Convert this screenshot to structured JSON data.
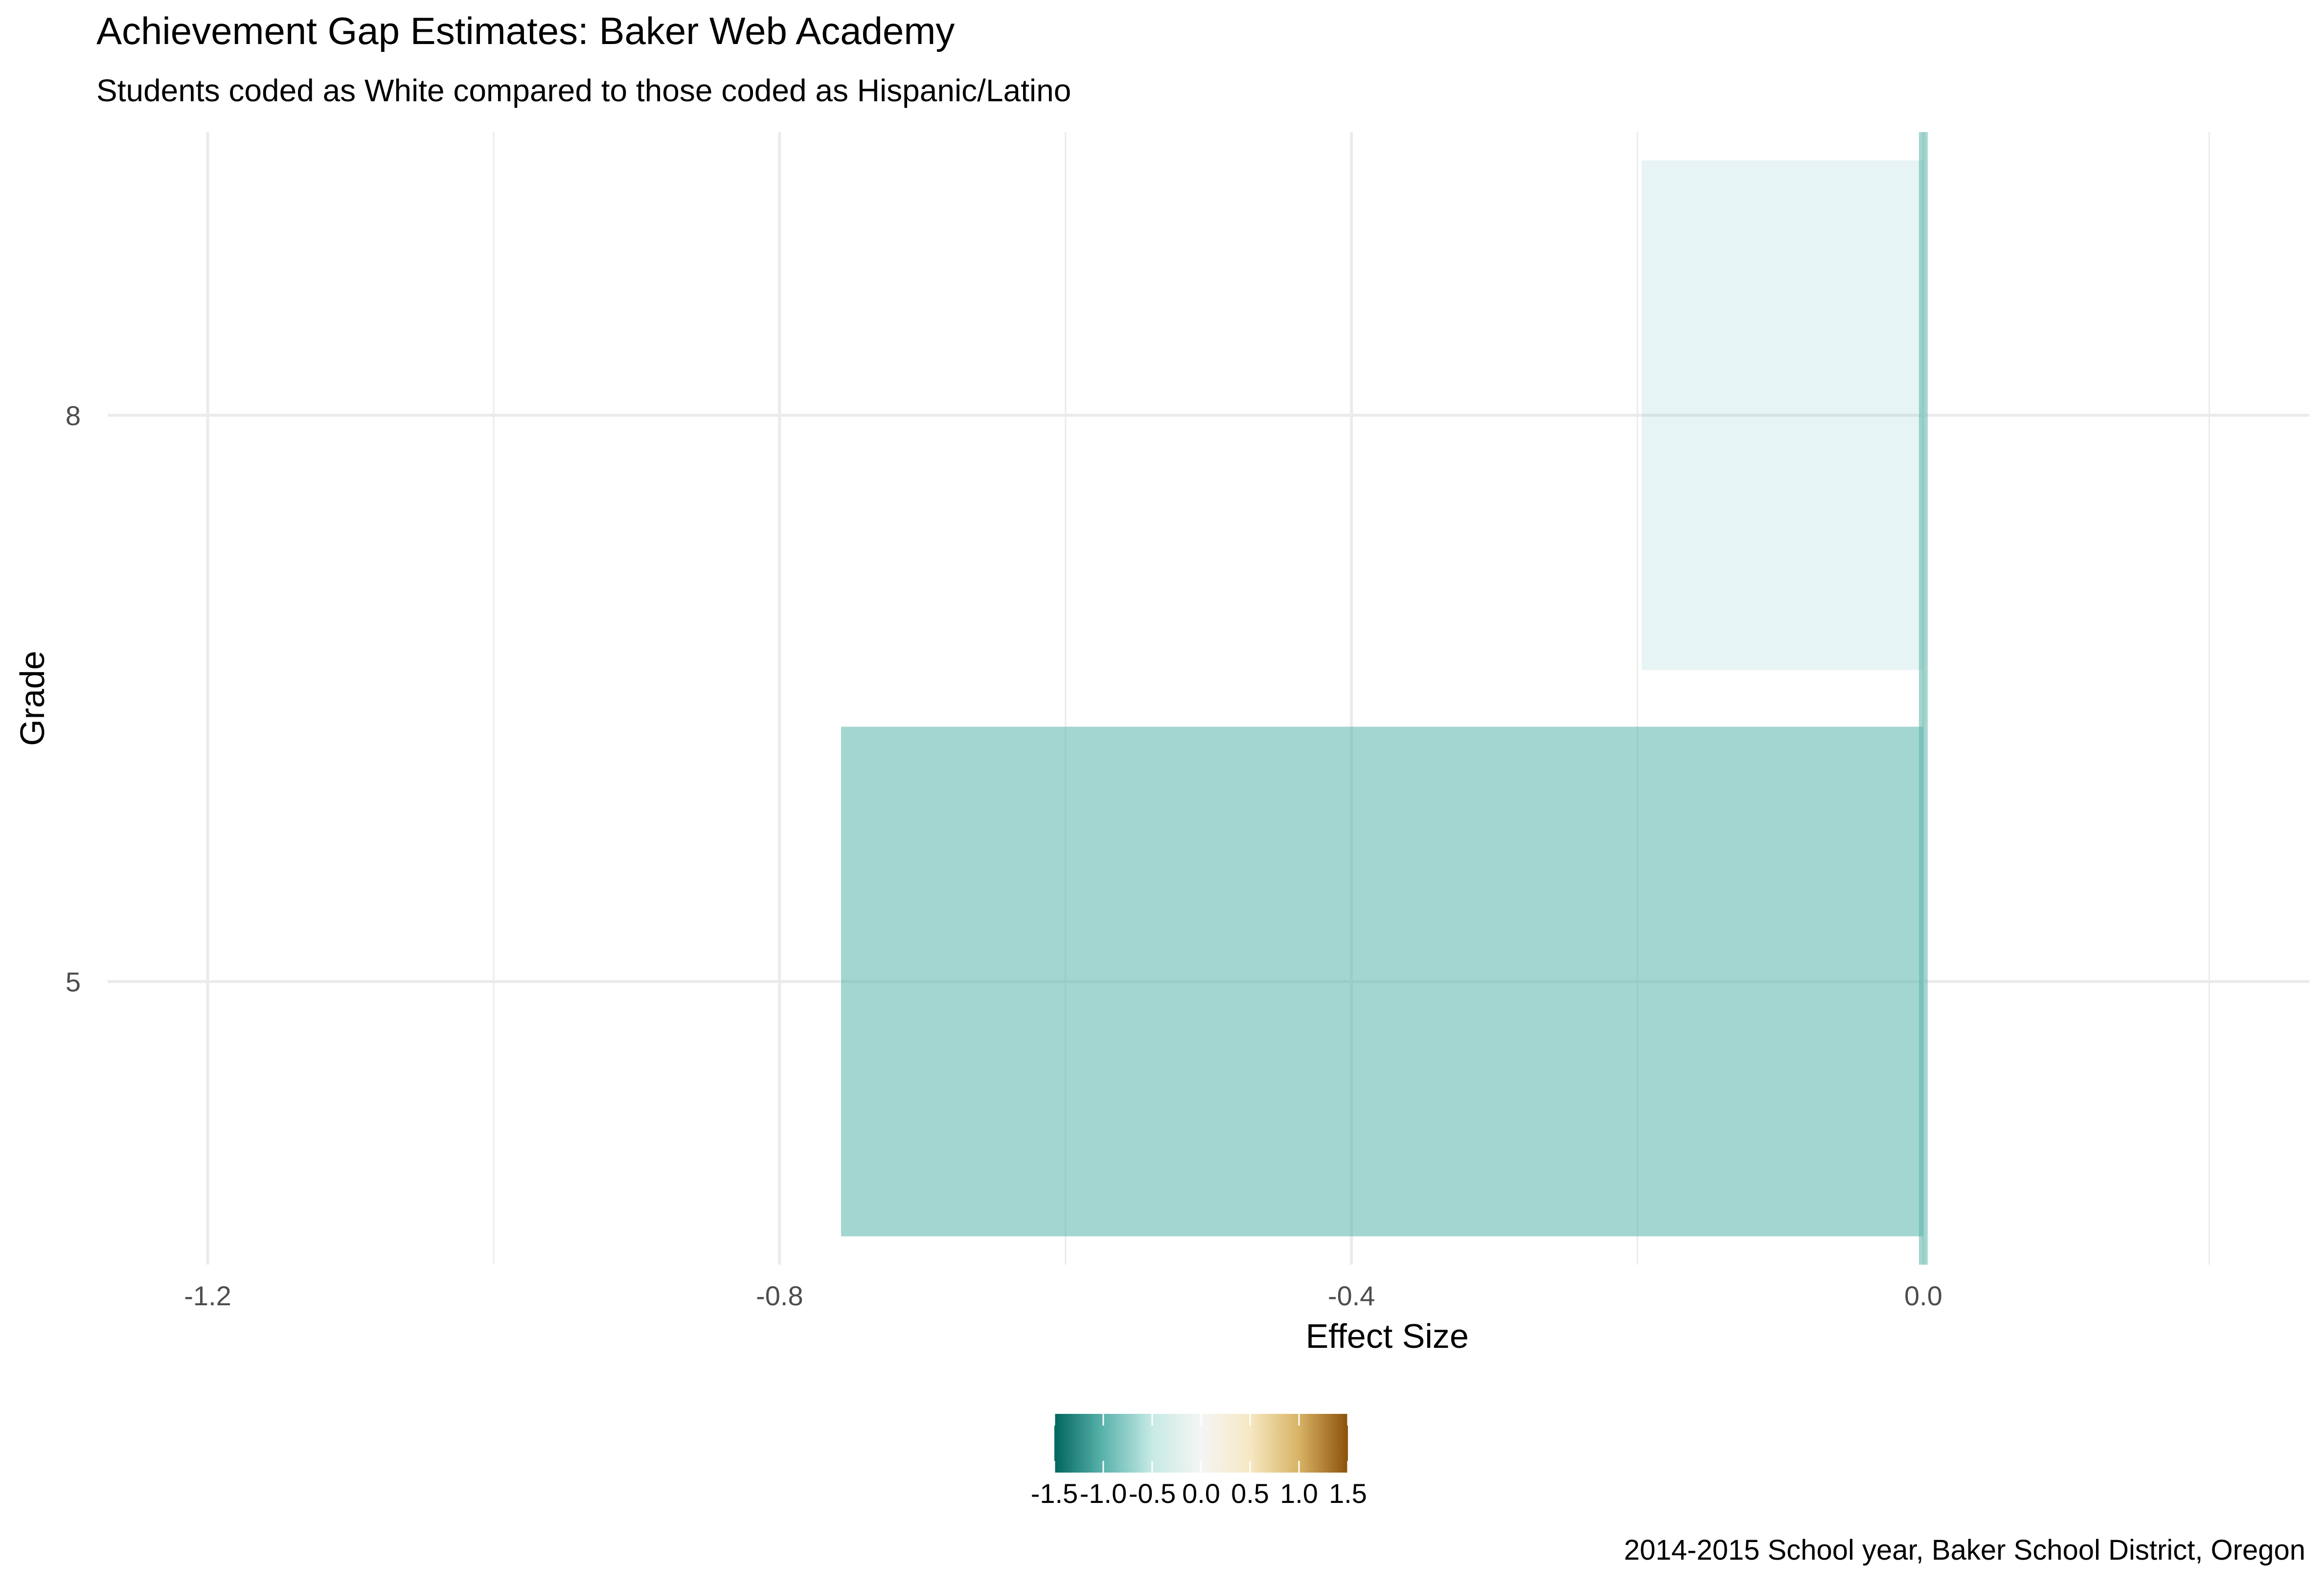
{
  "chart_data": {
    "type": "bar",
    "orientation": "horizontal",
    "title": "Achievement Gap Estimates: Baker Web Academy",
    "subtitle": "Students coded as White compared to those coded as Hispanic/Latino",
    "caption": "2014-2015 School year, Baker School District, Oregon",
    "xlabel": "Effect Size",
    "ylabel": "Grade",
    "categories": [
      "5",
      "8"
    ],
    "values": [
      -0.757,
      -0.197
    ],
    "xlim": [
      -1.27,
      0.27
    ],
    "x_ticks": [
      -1.2,
      -0.8,
      -0.4,
      0.0
    ],
    "x_tick_labels": [
      "-1.2",
      "-0.8",
      "-0.4",
      "0.0"
    ],
    "reference_line": 0.0,
    "grid": true,
    "legend": {
      "type": "colorbar",
      "placement": "bottom",
      "min": -1.5,
      "max": 1.5,
      "ticks": [
        -1.5,
        -1.0,
        -0.5,
        0.0,
        0.5,
        1.0,
        1.5
      ],
      "tick_labels": [
        "-1.5",
        "-1.0",
        "-0.5",
        "0.0",
        "0.5",
        "1.0",
        "1.5"
      ],
      "palette": [
        "#01665e",
        "#5ab4ac",
        "#c7eae5",
        "#f5f5f5",
        "#f6e8c3",
        "#d8b365",
        "#8c510a"
      ]
    },
    "colors": {
      "bar_fill": "#5ab4ac",
      "grid": "#ebebeb",
      "zero_line": "#5ab4ac",
      "axis_text": "#4d4d4d"
    }
  }
}
